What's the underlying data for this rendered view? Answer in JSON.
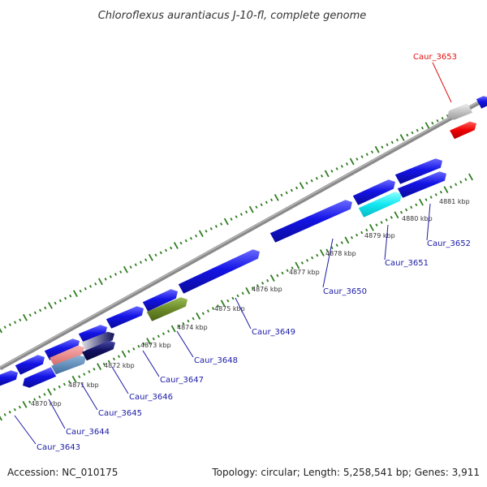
{
  "title": "Chloroflexus aurantiacus J-10-fl, complete genome",
  "footer": {
    "accession": "Accession: NC_010175",
    "info": "Topology: circular; Length: 5,258,541 bp; Genes: 3,911"
  },
  "colors": {
    "backbone": "#8a8a8a",
    "gene_default": "#1010e0",
    "tick": "#2e7d1e",
    "label_default": "#1a1aa6",
    "label_highlight": "#dd1111"
  },
  "scale_labels": [
    "4870 kbp",
    "4871 kbp",
    "4872 kbp",
    "4873 kbp",
    "4874 kbp",
    "4875 kbp",
    "4876 kbp",
    "4877 kbp",
    "4878 kbp",
    "4879 kbp",
    "4880 kbp",
    "4881 kbp"
  ],
  "gene_labels": [
    {
      "name": "Caur_3643",
      "highlight": false
    },
    {
      "name": "Caur_3644",
      "highlight": false
    },
    {
      "name": "Caur_3645",
      "highlight": false
    },
    {
      "name": "Caur_3646",
      "highlight": false
    },
    {
      "name": "Caur_3647",
      "highlight": false
    },
    {
      "name": "Caur_3648",
      "highlight": false
    },
    {
      "name": "Caur_3649",
      "highlight": false
    },
    {
      "name": "Caur_3650",
      "highlight": false
    },
    {
      "name": "Caur_3651",
      "highlight": false
    },
    {
      "name": "Caur_3652",
      "highlight": false
    },
    {
      "name": "Caur_3653",
      "highlight": true
    }
  ]
}
